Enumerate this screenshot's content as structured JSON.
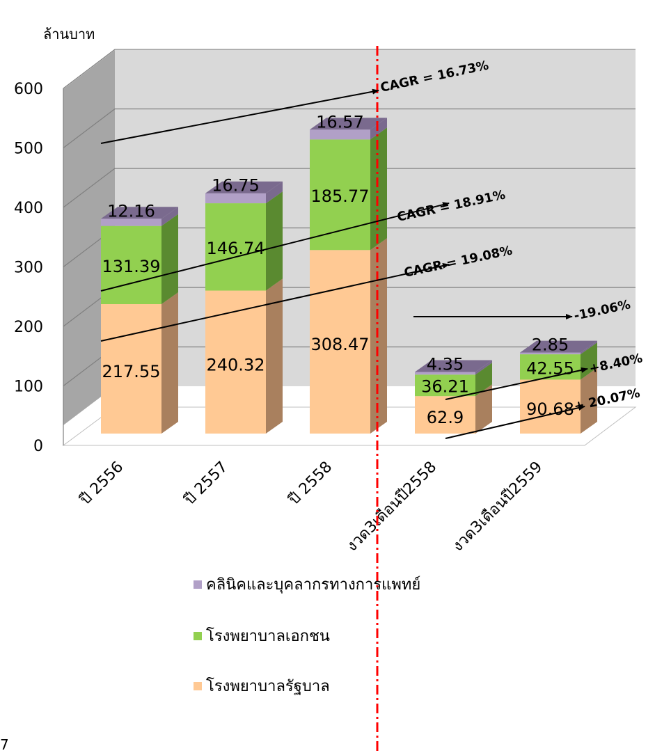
{
  "chart_data": {
    "type": "bar",
    "stacked": true,
    "three_d": true,
    "ylabel": "ล้านบาท",
    "ylim": [
      0,
      600
    ],
    "y_ticks": [
      0,
      100,
      200,
      300,
      400,
      500,
      600
    ],
    "grid": true,
    "categories": [
      "ปี 2556",
      "ปี 2557",
      "ปี 2558",
      "งวด3เดือนปี2558",
      "งวด3เดือนปี2559"
    ],
    "series": [
      {
        "name": "โรงพยาบาลรัฐบาล",
        "color": "#ffc994",
        "side_color": "#a9805e",
        "values": [
          217.55,
          240.32,
          308.47,
          62.9,
          90.68
        ],
        "labels": [
          "217.55",
          "240.32",
          "308.47",
          "62.9",
          "90.68"
        ]
      },
      {
        "name": "โรงพยาบาลเอกชน",
        "color": "#92d050",
        "side_color": "#5a8a30",
        "values": [
          131.39,
          146.74,
          185.77,
          36.21,
          42.55
        ],
        "labels": [
          "131.39",
          "146.74",
          "185.77",
          "36.21",
          "42.55"
        ]
      },
      {
        "name": "คลินิคและบุคลากรทางการแพทย์",
        "color": "#b1a0c7",
        "side_color": "#7a6a8e",
        "values": [
          12.16,
          16.75,
          16.57,
          4.35,
          2.85
        ],
        "labels": [
          "12.16",
          "16.75",
          "16.57",
          "4.35",
          "2.85"
        ]
      }
    ],
    "annotations": [
      "CAGR = 16.73%",
      "CAGR = 18.91%",
      "CAGR = 19.08%",
      "-19.06%",
      "+8.40%",
      "+ 20.07%"
    ],
    "legend_position": "bottom",
    "legend_order": [
      2,
      1,
      0
    ]
  },
  "page_number": "7",
  "colors": {
    "wall": "#d9d9d9",
    "side_wall": "#a6a6a6",
    "divider": "#ff0000"
  }
}
